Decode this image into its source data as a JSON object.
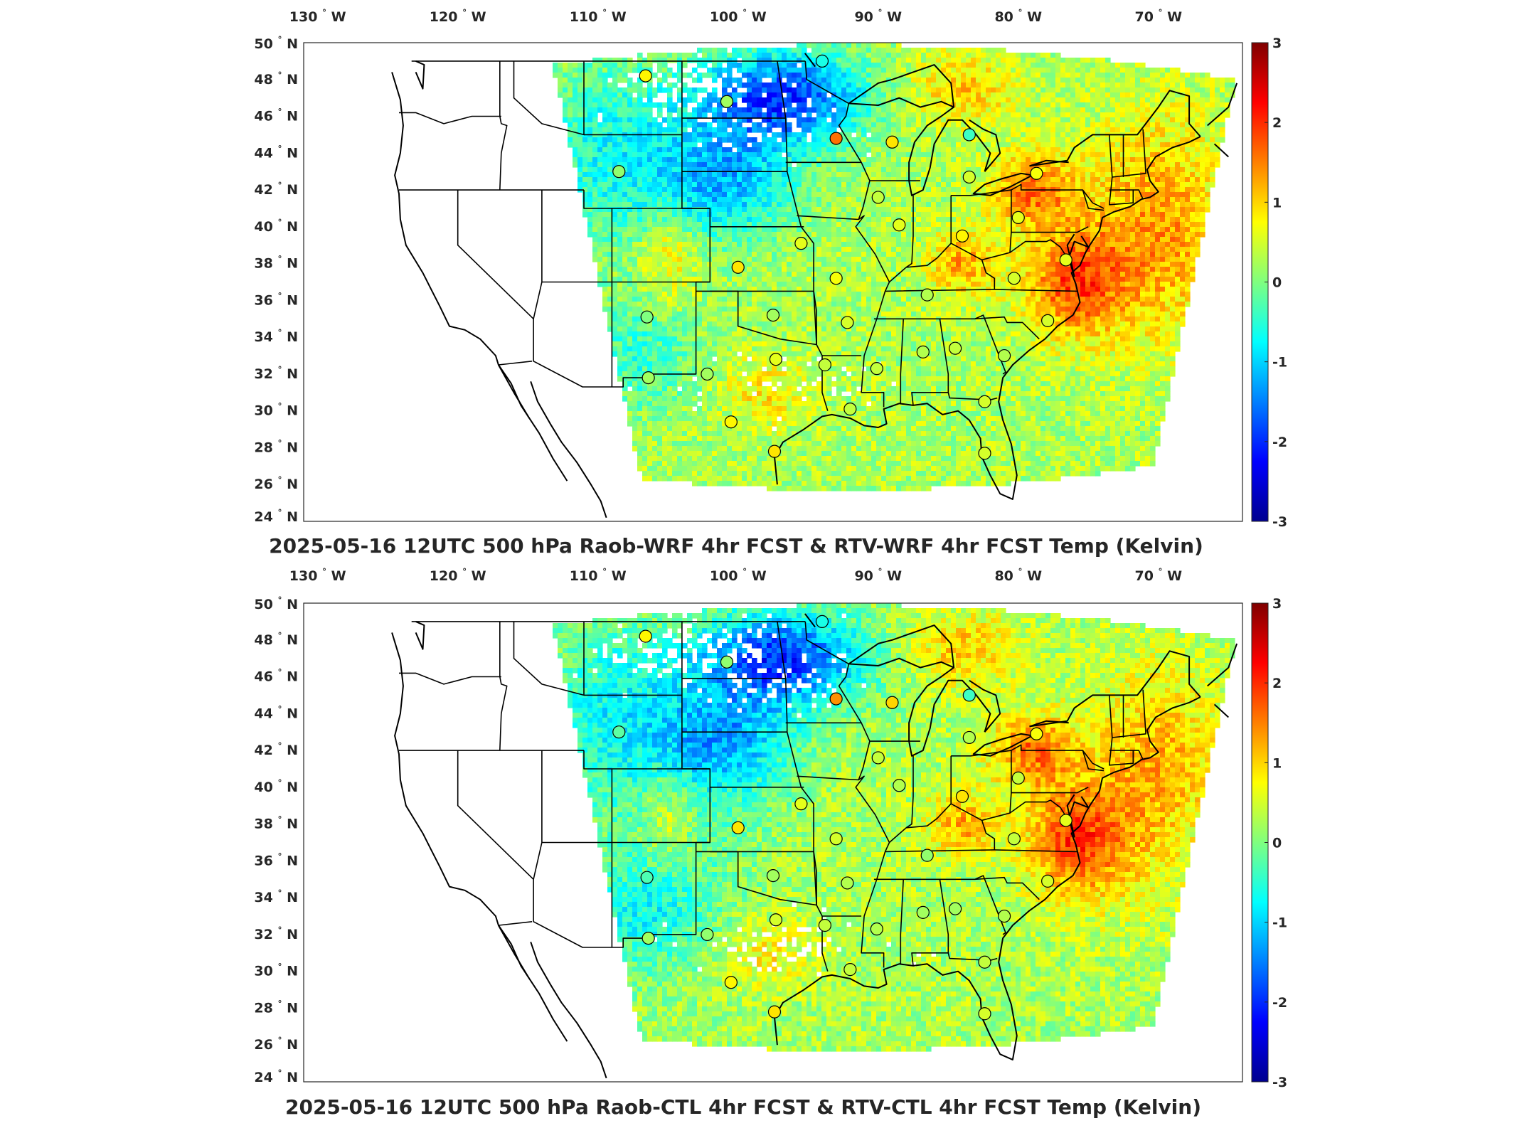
{
  "panels": [
    {
      "title": "2025-05-16 12UTC 500 hPa Raob-WRF 4hr FCST & RTV-WRF 4hr FCST Temp (Kelvin)",
      "variant": 0
    },
    {
      "title": "2025-05-16 12UTC 500 hPa Raob-CTL 4hr FCST & RTV-CTL 4hr FCST Temp (Kelvin)",
      "variant": 1
    }
  ],
  "axes": {
    "lon_labels": [
      "130",
      "120",
      "110",
      "100",
      "90",
      "80",
      "70"
    ],
    "lon_suffix": "W",
    "lat_labels": [
      "50",
      "48",
      "46",
      "44",
      "42",
      "40",
      "38",
      "36",
      "34",
      "32",
      "30",
      "28",
      "26",
      "24"
    ],
    "lat_suffix": "N",
    "lon_range": [
      -131,
      -64
    ],
    "lat_range": [
      24,
      50
    ]
  },
  "colorbar": {
    "ticks": [
      "3",
      "2",
      "1",
      "0",
      "-1",
      "-2",
      "-3"
    ],
    "range": [
      -3,
      3
    ],
    "colormap": "jet"
  },
  "colors": {
    "land_lines": "#000000",
    "frame": "#262626"
  },
  "stations": [
    {
      "lon": -106.6,
      "lat": 48.2,
      "v": [
        0.8,
        0.8
      ]
    },
    {
      "lon": -100.8,
      "lat": 46.8,
      "v": [
        0.2,
        0.1
      ]
    },
    {
      "lon": -93.0,
      "lat": 44.8,
      "v": [
        1.6,
        1.4
      ]
    },
    {
      "lon": -108.5,
      "lat": 43.0,
      "v": [
        0.1,
        -0.2
      ]
    },
    {
      "lon": -94.0,
      "lat": 49.0,
      "v": [
        -0.6,
        -0.6
      ]
    },
    {
      "lon": -89.0,
      "lat": 44.6,
      "v": [
        0.9,
        1.0
      ]
    },
    {
      "lon": -83.5,
      "lat": 45.0,
      "v": [
        -0.4,
        -0.4
      ]
    },
    {
      "lon": -83.5,
      "lat": 42.7,
      "v": [
        0.5,
        0.3
      ]
    },
    {
      "lon": -78.7,
      "lat": 42.9,
      "v": [
        0.7,
        0.7
      ]
    },
    {
      "lon": -90.0,
      "lat": 41.6,
      "v": [
        0.4,
        0.4
      ]
    },
    {
      "lon": -88.5,
      "lat": 40.1,
      "v": [
        0.6,
        0.3
      ]
    },
    {
      "lon": -84.0,
      "lat": 39.5,
      "v": [
        0.8,
        0.9
      ]
    },
    {
      "lon": -80.0,
      "lat": 40.5,
      "v": [
        0.6,
        0.4
      ]
    },
    {
      "lon": -95.5,
      "lat": 39.1,
      "v": [
        0.6,
        0.6
      ]
    },
    {
      "lon": -100.0,
      "lat": 37.8,
      "v": [
        0.9,
        0.9
      ]
    },
    {
      "lon": -93.0,
      "lat": 37.2,
      "v": [
        0.7,
        0.5
      ]
    },
    {
      "lon": -86.5,
      "lat": 36.3,
      "v": [
        0.3,
        0.1
      ]
    },
    {
      "lon": -80.3,
      "lat": 37.2,
      "v": [
        0.5,
        0.4
      ]
    },
    {
      "lon": -97.5,
      "lat": 35.2,
      "v": [
        0.2,
        0.2
      ]
    },
    {
      "lon": -92.2,
      "lat": 34.8,
      "v": [
        0.5,
        0.3
      ]
    },
    {
      "lon": -106.5,
      "lat": 35.1,
      "v": [
        0.0,
        -0.3
      ]
    },
    {
      "lon": -97.3,
      "lat": 32.8,
      "v": [
        0.6,
        0.5
      ]
    },
    {
      "lon": -93.8,
      "lat": 32.5,
      "v": [
        0.4,
        0.4
      ]
    },
    {
      "lon": -90.1,
      "lat": 32.3,
      "v": [
        0.4,
        0.3
      ]
    },
    {
      "lon": -86.8,
      "lat": 33.2,
      "v": [
        0.3,
        0.2
      ]
    },
    {
      "lon": -84.5,
      "lat": 33.4,
      "v": [
        0.4,
        0.2
      ]
    },
    {
      "lon": -81.0,
      "lat": 33.0,
      "v": [
        0.3,
        0.3
      ]
    },
    {
      "lon": -77.9,
      "lat": 34.9,
      "v": [
        0.5,
        0.5
      ]
    },
    {
      "lon": -106.4,
      "lat": 31.8,
      "v": [
        0.2,
        0.2
      ]
    },
    {
      "lon": -102.2,
      "lat": 32.0,
      "v": [
        0.2,
        0.1
      ]
    },
    {
      "lon": -100.5,
      "lat": 29.4,
      "v": [
        0.8,
        0.8
      ]
    },
    {
      "lon": -97.4,
      "lat": 27.8,
      "v": [
        0.9,
        0.9
      ]
    },
    {
      "lon": -92.0,
      "lat": 30.1,
      "v": [
        0.4,
        0.4
      ]
    },
    {
      "lon": -82.4,
      "lat": 30.5,
      "v": [
        0.5,
        0.4
      ]
    },
    {
      "lon": -82.4,
      "lat": 27.7,
      "v": [
        0.5,
        0.5
      ]
    },
    {
      "lon": -76.6,
      "lat": 38.2,
      "v": [
        0.6,
        0.6
      ]
    }
  ]
}
